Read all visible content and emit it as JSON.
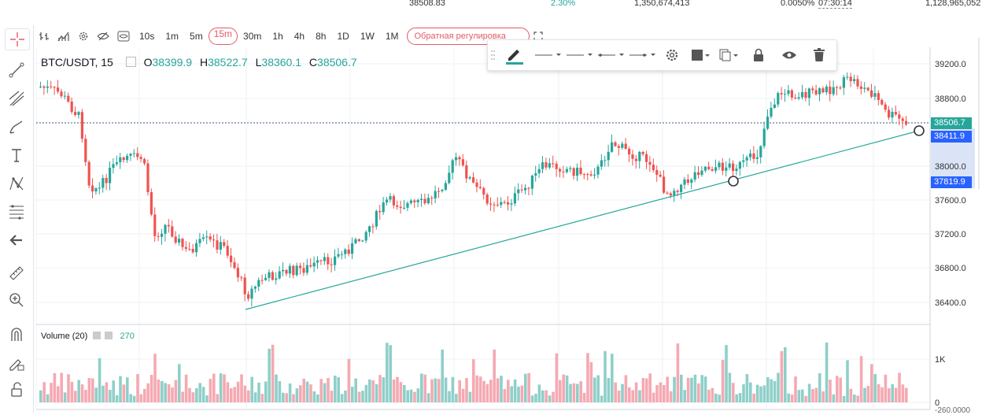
{
  "ticker_strip": {
    "price": "38508.83",
    "change_pct": "2.30%",
    "volume": "1,350,674,413",
    "funding": "0.0050%",
    "countdown": "07:30:14",
    "open_interest": "1,128,965,052"
  },
  "timeframes": {
    "items": [
      "10s",
      "1m",
      "5m",
      "15m",
      "30m",
      "1h",
      "4h",
      "8h",
      "1D",
      "1W",
      "1M"
    ],
    "active": "15m"
  },
  "reverse_label": "Обратная регулировка",
  "legend": {
    "symbol": "BTC/USDT, 15",
    "o_label": "O",
    "o": "38399.9",
    "h_label": "H",
    "h": "38522.7",
    "l_label": "L",
    "l": "38360.1",
    "c_label": "C",
    "c": "38506.7"
  },
  "volume_legend": {
    "name": "Volume (20)",
    "value": "270"
  },
  "price_axis": {
    "ticks": [
      "39200.0",
      "38800.0",
      "38000.0",
      "37600.0",
      "37200.0",
      "36800.0",
      "36400.0"
    ],
    "last_price": "38506.7",
    "line_high": "38411.9",
    "line_low": "37819.9"
  },
  "volume_axis": {
    "ticks": [
      "1K",
      "0"
    ],
    "bottom_label": "-260.0000"
  },
  "colors": {
    "up": "#26a69a",
    "down": "#ef5350",
    "trendline": "#26a69a",
    "accent": "#e35b66"
  }
}
